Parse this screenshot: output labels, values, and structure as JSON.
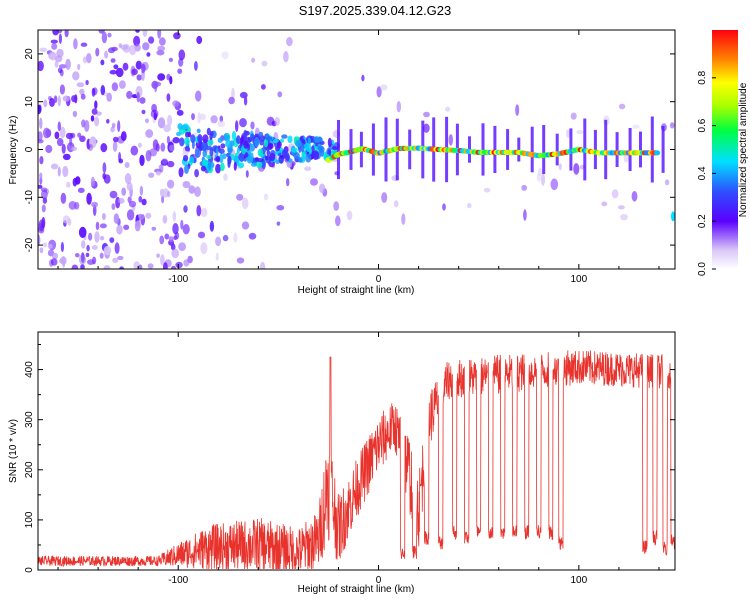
{
  "title": "S197.2025.339.04.12.G23",
  "colors": {
    "snr_line": "#e8322c",
    "axes": "#000000",
    "background": "#ffffff"
  },
  "chart_data": [
    {
      "type": "heatmap",
      "name": "spectrogram",
      "xlabel": "Height of straight line (km)",
      "ylabel": "Frequency (Hz)",
      "xlim": [
        -170,
        148
      ],
      "ylim": [
        -25,
        25
      ],
      "xticks": [
        -100,
        0,
        100
      ],
      "xtick_labels": [
        "-100",
        "0",
        "100"
      ],
      "yticks": [
        -20,
        -10,
        0,
        10,
        20
      ],
      "ytick_labels": [
        "-20",
        "-10",
        "0",
        "10",
        "20"
      ],
      "colorbar": {
        "label": "Normalized spectral amplitude",
        "range": [
          0,
          1
        ],
        "ticks": [
          0.0,
          0.2,
          0.4,
          0.6,
          0.8
        ],
        "tick_labels": [
          "0.0",
          "0.2",
          "0.4",
          "0.6",
          "0.8"
        ]
      },
      "carrier_track": [
        {
          "x": -25,
          "f": -2.2
        },
        {
          "x": -20,
          "f": -1.0
        },
        {
          "x": -15,
          "f": -0.6
        },
        {
          "x": -8,
          "f": 0.2
        },
        {
          "x": 0,
          "f": -0.8
        },
        {
          "x": 10,
          "f": 0.2
        },
        {
          "x": 20,
          "f": 0.3
        },
        {
          "x": 30,
          "f": 0.0
        },
        {
          "x": 40,
          "f": -0.2
        },
        {
          "x": 50,
          "f": -0.6
        },
        {
          "x": 60,
          "f": -0.6
        },
        {
          "x": 70,
          "f": -0.6
        },
        {
          "x": 80,
          "f": -1.3
        },
        {
          "x": 90,
          "f": -0.9
        },
        {
          "x": 100,
          "f": 0.0
        },
        {
          "x": 110,
          "f": -0.7
        },
        {
          "x": 120,
          "f": -0.7
        },
        {
          "x": 130,
          "f": -0.7
        },
        {
          "x": 140,
          "f": -0.7
        }
      ]
    },
    {
      "type": "line",
      "name": "snr",
      "xlabel": "Height of straight line (km)",
      "ylabel": "SNR (10 * v/v)",
      "xlim": [
        -170,
        148
      ],
      "ylim": [
        0,
        475
      ],
      "xticks": [
        -100,
        0,
        100
      ],
      "xtick_labels": [
        "-100",
        "0",
        "100"
      ],
      "yticks": [
        0,
        100,
        200,
        300,
        400
      ],
      "ytick_labels": [
        "0",
        "100",
        "200",
        "300",
        "400"
      ],
      "envelope": [
        {
          "x": -170,
          "base": 18,
          "noise": 10
        },
        {
          "x": -110,
          "base": 18,
          "noise": 10
        },
        {
          "x": -100,
          "base": 30,
          "noise": 25
        },
        {
          "x": -85,
          "base": 45,
          "noise": 45
        },
        {
          "x": -60,
          "base": 50,
          "noise": 55
        },
        {
          "x": -40,
          "base": 35,
          "noise": 50
        },
        {
          "x": -30,
          "base": 60,
          "noise": 60
        },
        {
          "x": -25,
          "base": 180,
          "noise": 120
        },
        {
          "x": -20,
          "base": 80,
          "noise": 70
        },
        {
          "x": -10,
          "base": 170,
          "noise": 60
        },
        {
          "x": 0,
          "base": 250,
          "noise": 60
        },
        {
          "x": 8,
          "base": 290,
          "noise": 50
        },
        {
          "x": 15,
          "base": 200,
          "noise": 80
        },
        {
          "x": 20,
          "base": 120,
          "noise": 80
        },
        {
          "x": 25,
          "base": 300,
          "noise": 60
        },
        {
          "x": 35,
          "base": 380,
          "noise": 40
        },
        {
          "x": 60,
          "base": 390,
          "noise": 40
        },
        {
          "x": 100,
          "base": 405,
          "noise": 35
        },
        {
          "x": 148,
          "base": 395,
          "noise": 35
        }
      ],
      "dropouts": [
        {
          "x": 12,
          "min": 20
        },
        {
          "x": 18,
          "min": 20
        },
        {
          "x": 24,
          "min": 50
        },
        {
          "x": 31,
          "min": 40
        },
        {
          "x": 38,
          "min": 60
        },
        {
          "x": 44,
          "min": 50
        },
        {
          "x": 50,
          "min": 60
        },
        {
          "x": 56,
          "min": 60
        },
        {
          "x": 62,
          "min": 60
        },
        {
          "x": 68,
          "min": 60
        },
        {
          "x": 74,
          "min": 60
        },
        {
          "x": 80,
          "min": 60
        },
        {
          "x": 86,
          "min": 60
        },
        {
          "x": 91,
          "min": 40
        },
        {
          "x": 133,
          "min": 30
        },
        {
          "x": 138,
          "min": 50
        },
        {
          "x": 143,
          "min": 30
        },
        {
          "x": 147,
          "min": 40
        }
      ],
      "peak": {
        "x": -24,
        "y": 425
      }
    }
  ]
}
